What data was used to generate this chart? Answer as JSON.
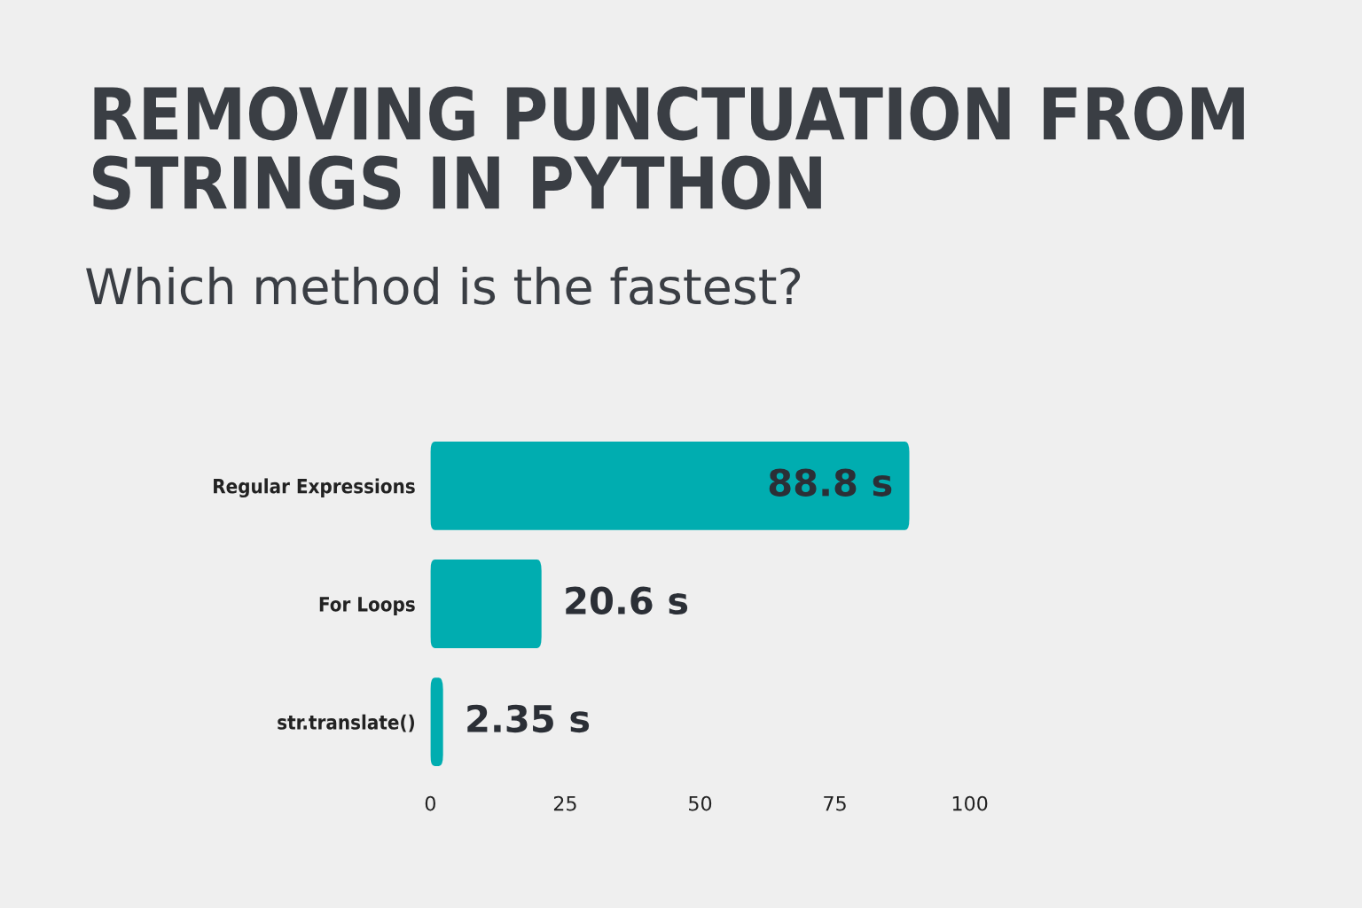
{
  "chart_data": {
    "type": "bar",
    "orientation": "horizontal",
    "title": "REMOVING PUNCTUATION FROM\nSTRINGS IN PYTHON",
    "subtitle": "Which method is the fastest?",
    "categories": [
      "Regular Expressions",
      "For Loops",
      "str.translate()"
    ],
    "values": [
      88.8,
      20.6,
      2.35
    ],
    "value_labels": [
      "88.8 s",
      "20.6 s",
      "2.35 s"
    ],
    "color": "#00adb0",
    "xlim": [
      0,
      100
    ],
    "xticks": [
      0,
      25,
      50,
      75,
      100
    ],
    "grid": false,
    "legend": false
  }
}
